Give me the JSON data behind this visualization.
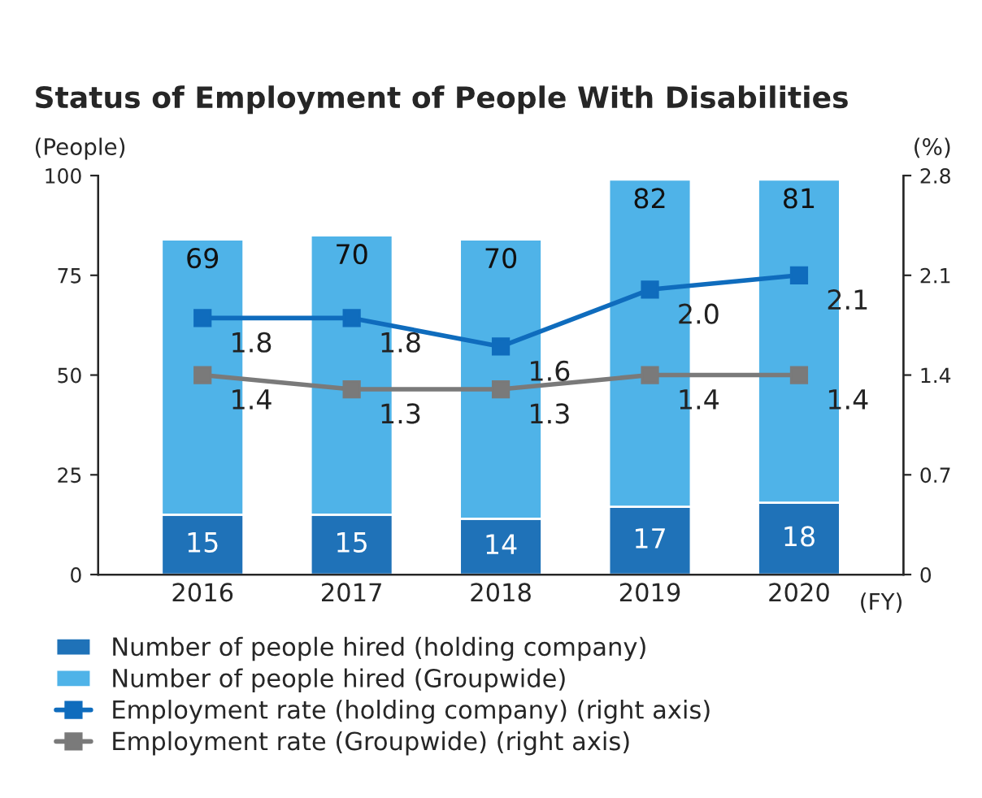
{
  "chart_data": {
    "type": "bar",
    "title": "Status of Employment of People With Disabilities",
    "ylabel": "(People)",
    "y2label": "(%)",
    "xlabel": "(FY)",
    "categories": [
      "2016",
      "2017",
      "2018",
      "2019",
      "2020"
    ],
    "stacked": true,
    "legend": "bottom",
    "marker": "square",
    "grid": false,
    "ylim": [
      0,
      100
    ],
    "yticks": [
      0,
      25,
      50,
      75,
      100
    ],
    "y2lim": [
      0,
      2.8
    ],
    "y2ticks": [
      0,
      0.7,
      1.4,
      2.1,
      2.8
    ],
    "series": [
      {
        "name": "Number of people hired (holding company)",
        "color": "#1f72b8",
        "values": [
          15,
          15,
          14,
          17,
          18
        ],
        "value_labels": [
          "15",
          "15",
          "14",
          "17",
          "18"
        ]
      },
      {
        "name": "Number of people hired (Groupwide)",
        "color": "#4fb3e8",
        "values": [
          69,
          70,
          70,
          82,
          81
        ],
        "value_labels": [
          "69",
          "70",
          "70",
          "82",
          "81"
        ]
      },
      {
        "name": "Employment rate (holding company) (right axis)",
        "type": "line",
        "axis": "y2",
        "color": "#0f6cbd",
        "values": [
          1.8,
          1.8,
          1.6,
          2.0,
          2.1
        ],
        "value_labels": [
          "1.8",
          "1.8",
          "1.6",
          "2.0",
          "2.1"
        ]
      },
      {
        "name": "Employment rate (Groupwide) (right axis)",
        "type": "line",
        "axis": "y2",
        "color": "#7a7a7a",
        "values": [
          1.4,
          1.3,
          1.3,
          1.4,
          1.4
        ],
        "value_labels": [
          "1.4",
          "1.3",
          "1.3",
          "1.4",
          "1.4"
        ]
      }
    ]
  }
}
